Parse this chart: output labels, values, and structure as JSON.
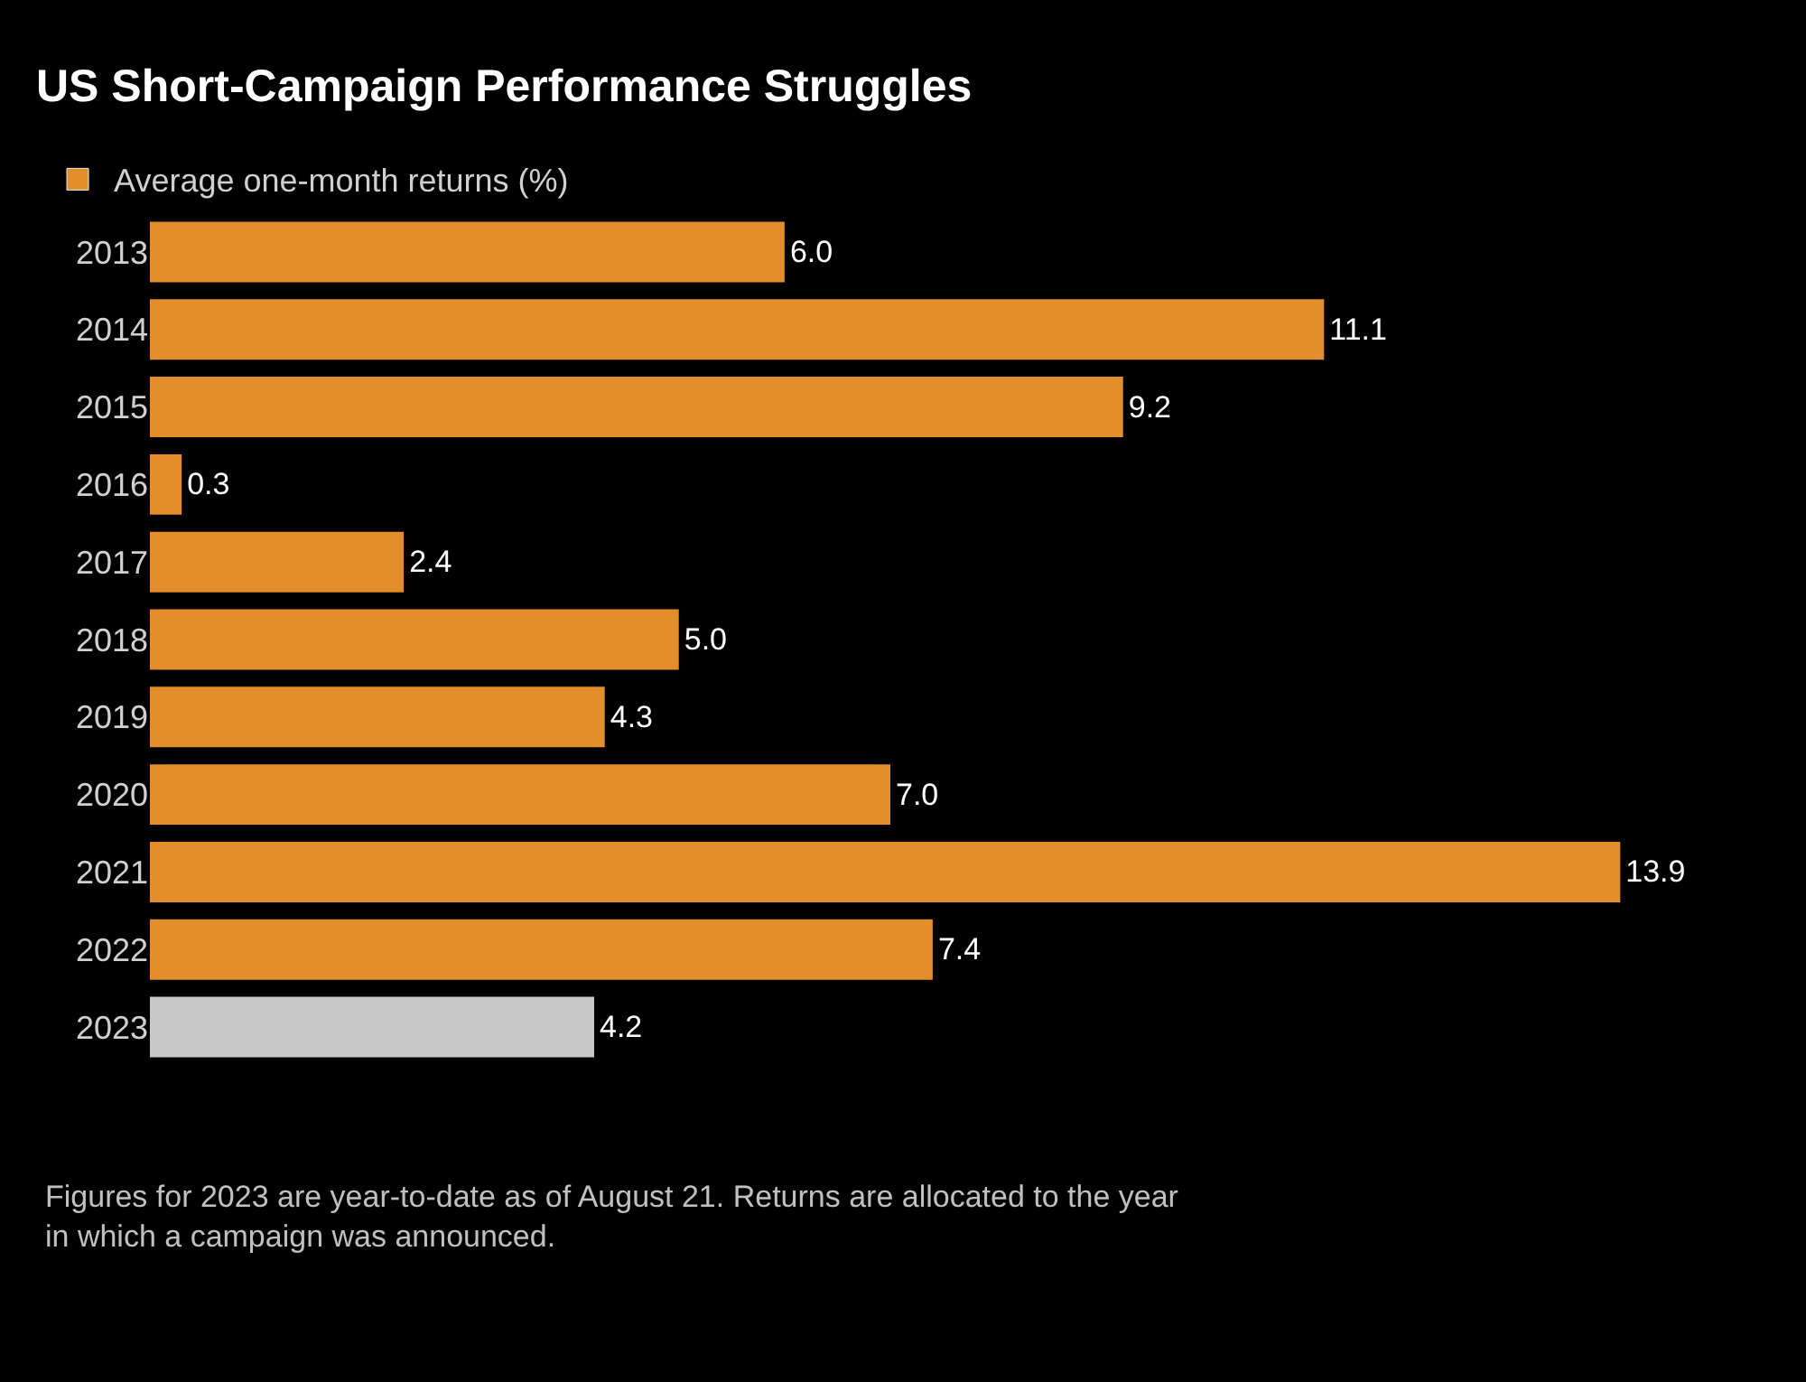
{
  "chart_data": {
    "type": "bar",
    "orientation": "horizontal",
    "title": "US Short-Campaign Performance Struggles",
    "categories": [
      "2013",
      "2014",
      "2015",
      "2016",
      "2017",
      "2018",
      "2019",
      "2020",
      "2021",
      "2022",
      "2023"
    ],
    "series": [
      {
        "name": "Average one-month returns (%)",
        "color": "#e38d2c",
        "colors": [
          "#e38d2c",
          "#e38d2c",
          "#e38d2c",
          "#e38d2c",
          "#e38d2c",
          "#e38d2c",
          "#e38d2c",
          "#e38d2c",
          "#e38d2c",
          "#e38d2c",
          "#c8c8c8"
        ],
        "values": [
          6.0,
          11.1,
          9.2,
          0.3,
          2.4,
          5.0,
          4.3,
          7.0,
          13.9,
          7.4,
          4.2
        ],
        "value_labels": [
          "6.0",
          "11.1",
          "9.2",
          "0.3",
          "2.4",
          "5.0",
          "4.3",
          "7.0",
          "13.9",
          "7.4",
          "4.2"
        ]
      }
    ],
    "legend": "top left",
    "grid": false,
    "annotations": [
      "Figures for 2023 are year-to-date as of August 21. Returns are allocated to the year in which a campaign was announced."
    ]
  }
}
